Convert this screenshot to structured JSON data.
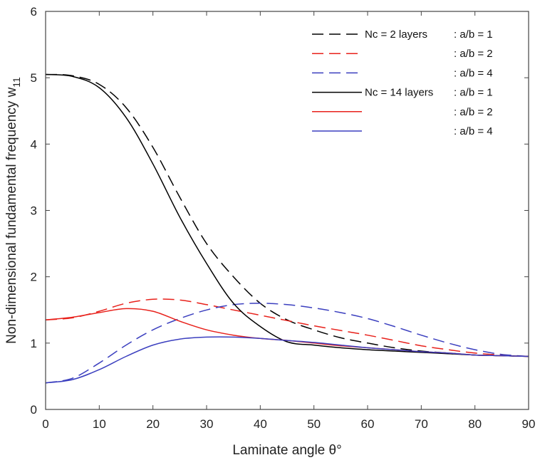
{
  "chart_data": {
    "type": "line",
    "title": "",
    "xlabel": "Laminate angle θ°",
    "ylabel": "Non-dimensional fundamental frequency w",
    "ylabel_subscript": "11",
    "xlim": [
      0,
      90
    ],
    "ylim": [
      0,
      6
    ],
    "xticks": [
      "0",
      "10",
      "20",
      "30",
      "40",
      "50",
      "60",
      "70",
      "80",
      "90"
    ],
    "yticks": [
      "0",
      "1",
      "2",
      "3",
      "4",
      "5",
      "6"
    ],
    "grid": false,
    "legend_position": "top-right",
    "x": [
      0,
      5,
      10,
      15,
      20,
      25,
      30,
      35,
      40,
      45,
      50,
      55,
      60,
      65,
      70,
      75,
      80,
      85,
      90
    ],
    "series": [
      {
        "name": "Nc = 2 layers : a/b = 1",
        "legend_label": "Nc = 2 layers",
        "ratio_label": ": a/b = 1",
        "color": "#000000",
        "dash": true,
        "values": [
          5.05,
          5.03,
          4.9,
          4.55,
          3.95,
          3.2,
          2.5,
          2.0,
          1.6,
          1.35,
          1.2,
          1.08,
          1.0,
          0.93,
          0.88,
          0.85,
          0.82,
          0.81,
          0.8
        ]
      },
      {
        "name": "Nc = 2 layers : a/b = 2",
        "legend_label": "",
        "ratio_label": ": a/b = 2",
        "color": "#e8211b",
        "dash": true,
        "values": [
          1.35,
          1.38,
          1.48,
          1.6,
          1.66,
          1.65,
          1.58,
          1.5,
          1.42,
          1.34,
          1.26,
          1.19,
          1.12,
          1.04,
          0.96,
          0.9,
          0.85,
          0.82,
          0.8
        ]
      },
      {
        "name": "Nc = 2 layers : a/b = 4",
        "legend_label": "",
        "ratio_label": ": a/b = 4",
        "color": "#3b3fbf",
        "dash": true,
        "values": [
          0.4,
          0.47,
          0.7,
          0.97,
          1.2,
          1.37,
          1.5,
          1.58,
          1.6,
          1.58,
          1.53,
          1.46,
          1.37,
          1.25,
          1.12,
          1.0,
          0.9,
          0.83,
          0.8
        ]
      },
      {
        "name": "Nc = 14 layers : a/b = 1",
        "legend_label": "Nc = 14 layers",
        "ratio_label": ": a/b = 1",
        "color": "#000000",
        "dash": false,
        "values": [
          5.05,
          5.02,
          4.85,
          4.4,
          3.7,
          2.9,
          2.2,
          1.6,
          1.25,
          1.02,
          0.97,
          0.93,
          0.9,
          0.88,
          0.86,
          0.84,
          0.82,
          0.81,
          0.8
        ]
      },
      {
        "name": "Nc = 14 layers : a/b = 2",
        "legend_label": "",
        "ratio_label": ": a/b = 2",
        "color": "#e8211b",
        "dash": false,
        "values": [
          1.35,
          1.39,
          1.46,
          1.52,
          1.48,
          1.33,
          1.2,
          1.12,
          1.07,
          1.04,
          1.0,
          0.96,
          0.93,
          0.9,
          0.87,
          0.85,
          0.82,
          0.81,
          0.8
        ]
      },
      {
        "name": "Nc = 14 layers : a/b = 4",
        "legend_label": "",
        "ratio_label": ": a/b = 4",
        "color": "#3b3fbf",
        "dash": false,
        "values": [
          0.4,
          0.45,
          0.6,
          0.8,
          0.97,
          1.06,
          1.09,
          1.09,
          1.07,
          1.04,
          1.01,
          0.97,
          0.93,
          0.9,
          0.87,
          0.85,
          0.82,
          0.81,
          0.8
        ]
      }
    ]
  }
}
